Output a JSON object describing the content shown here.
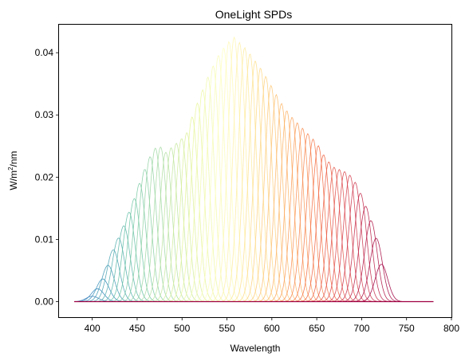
{
  "chart_data": {
    "type": "line",
    "title": "OneLight SPDs",
    "xlabel": "Wavelength",
    "ylabel_base": "W/m",
    "ylabel_sup": "2",
    "ylabel_tail": "/nm",
    "xlim": [
      363,
      800
    ],
    "ylim": [
      -0.0025,
      0.0445
    ],
    "x_ticks": [
      400,
      450,
      500,
      550,
      600,
      650,
      700,
      750,
      800
    ],
    "y_ticks": [
      0.0,
      0.01,
      0.02,
      0.03,
      0.04
    ],
    "y_tick_labels": [
      "0.00",
      "0.01",
      "0.02",
      "0.03",
      "0.04"
    ],
    "wavelength_range": [
      380,
      780
    ],
    "num_spds": 56,
    "colormap": "Spectral",
    "envelope": {
      "wavelength": [
        395,
        402,
        410,
        418,
        425,
        432,
        440,
        448,
        455,
        462,
        468,
        475,
        482,
        490,
        498,
        505,
        512,
        520,
        530,
        540,
        550,
        558,
        565,
        572,
        580,
        590,
        600,
        610,
        620,
        630,
        640,
        650,
        660,
        670,
        680,
        690,
        700,
        708,
        715,
        722,
        730,
        738
      ],
      "peak_value": [
        0.0,
        0.0012,
        0.003,
        0.006,
        0.009,
        0.011,
        0.014,
        0.017,
        0.02,
        0.0225,
        0.0245,
        0.025,
        0.024,
        0.025,
        0.026,
        0.027,
        0.03,
        0.033,
        0.0365,
        0.0395,
        0.0415,
        0.0425,
        0.0415,
        0.0405,
        0.039,
        0.037,
        0.0345,
        0.032,
        0.03,
        0.0285,
        0.027,
        0.0255,
        0.023,
        0.0215,
        0.021,
        0.02,
        0.017,
        0.014,
        0.011,
        0.006,
        0.001,
        0.0
      ]
    },
    "grid": false,
    "legend": "none"
  }
}
